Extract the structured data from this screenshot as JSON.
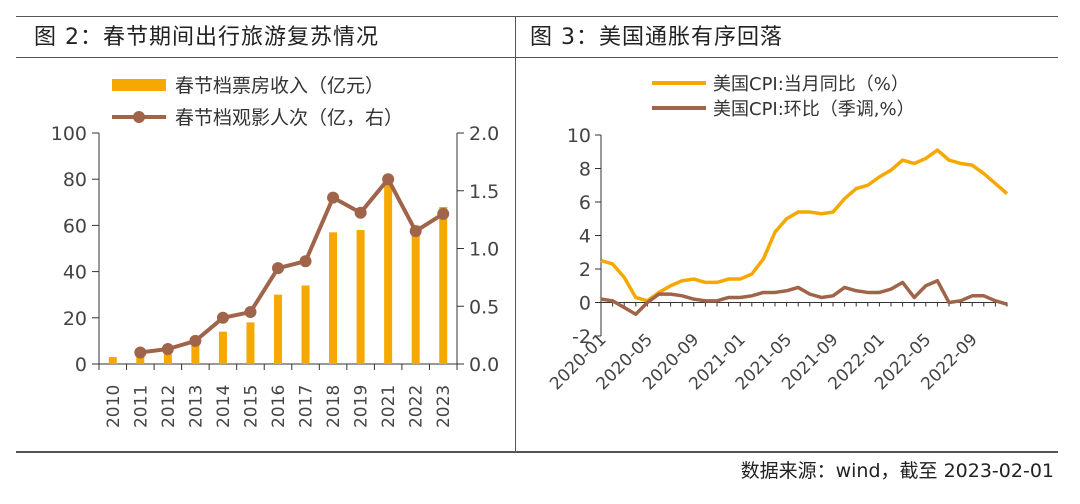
{
  "panels": {
    "left_title": "图 2：春节期间出行旅游复苏情况",
    "right_title": "图 3：美国通胀有序回落"
  },
  "source": "数据来源：wind，截至 2023-02-01",
  "colors": {
    "orange": "#F5A800",
    "brown": "#A0644A",
    "axis": "#333333"
  },
  "chart_data": [
    {
      "type": "bar+line",
      "title": "图 2：春节期间出行旅游复苏情况",
      "categories": [
        "2010",
        "2011",
        "2012",
        "2013",
        "2014",
        "2015",
        "2016",
        "2017",
        "2018",
        "2019",
        "2021",
        "2022",
        "2023"
      ],
      "series": [
        {
          "name": "春节档票房收入（亿元）",
          "type": "bar",
          "axis": "left",
          "values": [
            3,
            3,
            5,
            9,
            14,
            18,
            30,
            34,
            57,
            58,
            78,
            60,
            68
          ]
        },
        {
          "name": "春节档观影人次（亿，右）",
          "type": "line",
          "axis": "right",
          "values": [
            null,
            0.1,
            0.13,
            0.2,
            0.4,
            0.45,
            0.83,
            0.89,
            1.44,
            1.31,
            1.6,
            1.15,
            1.3
          ]
        }
      ],
      "yleft": {
        "min": 0,
        "max": 100,
        "ticks": [
          0,
          20,
          40,
          60,
          80,
          100
        ]
      },
      "yright": {
        "min": 0,
        "max": 2.0,
        "ticks": [
          "0.0",
          "0.5",
          "1.0",
          "1.5",
          "2.0"
        ]
      },
      "legend": "top-center"
    },
    {
      "type": "line",
      "title": "图 3：美国通胀有序回落",
      "x_labels": [
        "2020-01",
        "2020-05",
        "2020-09",
        "2021-01",
        "2021-05",
        "2021-09",
        "2022-01",
        "2022-05",
        "2022-09"
      ],
      "series": [
        {
          "name": "美国CPI:当月同比（%）",
          "values": [
            2.5,
            2.3,
            1.5,
            0.3,
            0.1,
            0.6,
            1.0,
            1.3,
            1.4,
            1.2,
            1.2,
            1.4,
            1.4,
            1.7,
            2.6,
            4.2,
            5.0,
            5.4,
            5.4,
            5.3,
            5.4,
            6.2,
            6.8,
            7.0,
            7.5,
            7.9,
            8.5,
            8.3,
            8.6,
            9.1,
            8.5,
            8.3,
            8.2,
            7.7,
            7.1,
            6.5
          ]
        },
        {
          "name": "美国CPI:环比（季调,%）",
          "values": [
            0.2,
            0.1,
            -0.3,
            -0.7,
            0.0,
            0.5,
            0.5,
            0.4,
            0.2,
            0.1,
            0.1,
            0.3,
            0.3,
            0.4,
            0.6,
            0.6,
            0.7,
            0.9,
            0.5,
            0.3,
            0.4,
            0.9,
            0.7,
            0.6,
            0.6,
            0.8,
            1.2,
            0.3,
            1.0,
            1.3,
            0.0,
            0.1,
            0.4,
            0.4,
            0.1,
            -0.1
          ]
        }
      ],
      "ylim": [
        -2,
        10
      ],
      "yticks": [
        -2,
        0,
        2,
        4,
        6,
        8,
        10
      ],
      "legend": "top-left"
    }
  ]
}
